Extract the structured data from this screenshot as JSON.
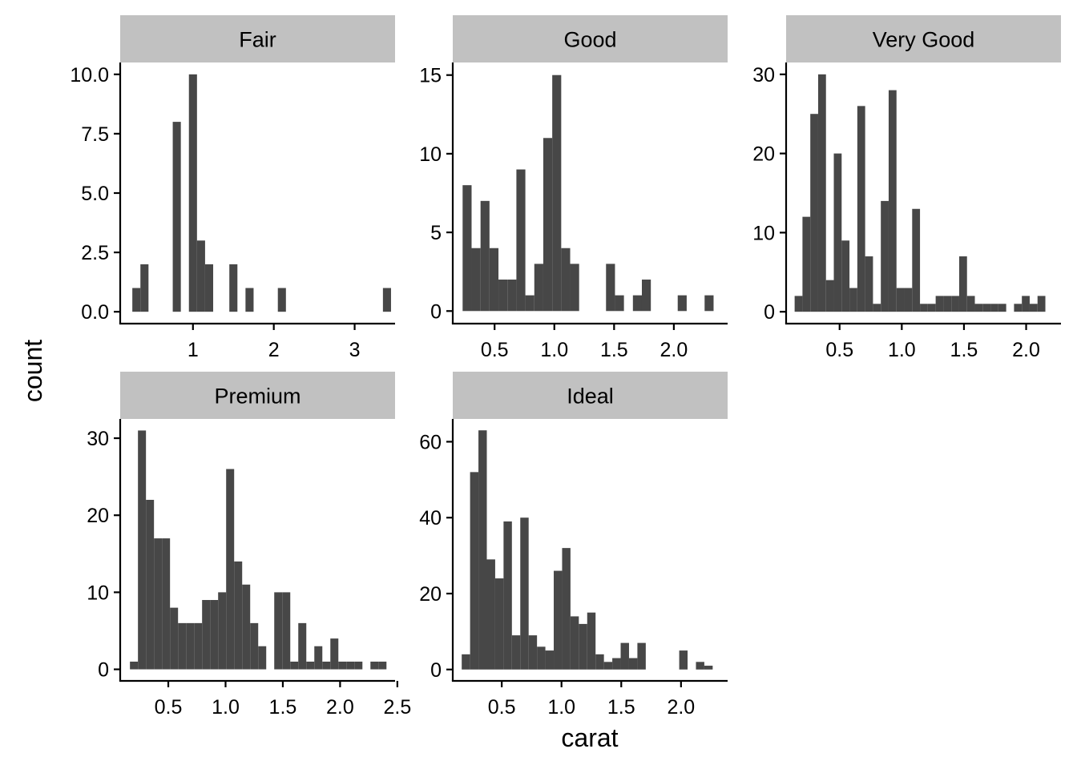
{
  "chart_data": {
    "type": "bar",
    "subtype": "faceted-histogram",
    "xlabel": "carat",
    "ylabel": "count",
    "bar_color": "#474747",
    "strip_color": "#c1c1c1",
    "grid": false,
    "legend": "none",
    "panels": [
      {
        "name": "Fair",
        "bin_width": 0.1,
        "xlim": [
          0.1,
          3.5
        ],
        "ylim": [
          -0.5,
          10.5
        ],
        "x_ticks": [
          1,
          2,
          3
        ],
        "x_tick_labels": [
          "1",
          "2",
          "3"
        ],
        "y_ticks": [
          0,
          2.5,
          5,
          7.5,
          10
        ],
        "y_tick_labels": [
          "0.0",
          "2.5",
          "5.0",
          "7.5",
          "10.0"
        ],
        "x": [
          0.3,
          0.4,
          0.8,
          1.0,
          1.1,
          1.2,
          1.5,
          1.7,
          2.1,
          3.4
        ],
        "counts": [
          1,
          2,
          8,
          10,
          3,
          2,
          2,
          1,
          1,
          1
        ]
      },
      {
        "name": "Good",
        "bin_width": 0.075,
        "xlim": [
          0.15,
          2.45
        ],
        "ylim": [
          -0.8,
          15.8
        ],
        "x_ticks": [
          0.5,
          1.0,
          1.5,
          2.0
        ],
        "x_tick_labels": [
          "0.5",
          "1.0",
          "1.5",
          "2.0"
        ],
        "y_ticks": [
          0,
          5,
          10,
          15
        ],
        "y_tick_labels": [
          "0",
          "5",
          "10",
          "15"
        ],
        "x": [
          0.27,
          0.345,
          0.42,
          0.495,
          0.57,
          0.645,
          0.72,
          0.795,
          0.87,
          0.945,
          1.02,
          1.095,
          1.17,
          1.47,
          1.545,
          1.695,
          1.77,
          2.07,
          2.295
        ],
        "counts": [
          8,
          4,
          7,
          4,
          2,
          2,
          9,
          1,
          3,
          11,
          15,
          4,
          3,
          3,
          1,
          1,
          2,
          1,
          1
        ]
      },
      {
        "name": "Very Good",
        "bin_width": 0.063,
        "xlim": [
          0.07,
          2.28
        ],
        "ylim": [
          -1.5,
          31.5
        ],
        "x_ticks": [
          0.5,
          1.0,
          1.5,
          2.0
        ],
        "x_tick_labels": [
          "0.5",
          "1.0",
          "1.5",
          "2.0"
        ],
        "y_ticks": [
          0,
          10,
          20,
          30
        ],
        "y_tick_labels": [
          "0",
          "10",
          "20",
          "30"
        ],
        "x": [
          0.17,
          0.233,
          0.296,
          0.359,
          0.422,
          0.485,
          0.548,
          0.611,
          0.674,
          0.737,
          0.8,
          0.863,
          0.926,
          0.989,
          1.052,
          1.115,
          1.178,
          1.241,
          1.304,
          1.367,
          1.43,
          1.493,
          1.556,
          1.619,
          1.682,
          1.745,
          1.808,
          1.934,
          1.997,
          2.06,
          2.123
        ],
        "counts": [
          2,
          12,
          25,
          30,
          4,
          20,
          9,
          3,
          26,
          7,
          1,
          14,
          28,
          3,
          3,
          13,
          1,
          1,
          2,
          2,
          2,
          7,
          2,
          1,
          1,
          1,
          1,
          1,
          2,
          1,
          2
        ]
      },
      {
        "name": "Premium",
        "bin_width": 0.07,
        "xlim": [
          0.08,
          2.48
        ],
        "ylim": [
          -1.5,
          32.5
        ],
        "x_ticks": [
          0.5,
          1.0,
          1.5,
          2.0,
          2.5
        ],
        "x_tick_labels": [
          "0.5",
          "1.0",
          "1.5",
          "2.0",
          "2.5"
        ],
        "y_ticks": [
          0,
          10,
          20,
          30
        ],
        "y_tick_labels": [
          "0",
          "10",
          "20",
          "30"
        ],
        "x": [
          0.2,
          0.27,
          0.34,
          0.41,
          0.48,
          0.55,
          0.62,
          0.69,
          0.76,
          0.83,
          0.9,
          0.97,
          1.04,
          1.11,
          1.18,
          1.25,
          1.32,
          1.46,
          1.53,
          1.6,
          1.67,
          1.74,
          1.81,
          1.88,
          1.95,
          2.02,
          2.09,
          2.16,
          2.3,
          2.37
        ],
        "counts": [
          1,
          31,
          22,
          17,
          17,
          8,
          6,
          6,
          6,
          9,
          9,
          10,
          26,
          14,
          11,
          6,
          3,
          10,
          10,
          1,
          6,
          1,
          3,
          1,
          4,
          1,
          1,
          1,
          1,
          1
        ]
      },
      {
        "name": "Ideal",
        "bin_width": 0.07,
        "xlim": [
          0.09,
          2.39
        ],
        "ylim": [
          -3,
          66
        ],
        "x_ticks": [
          0.5,
          1.0,
          1.5,
          2.0
        ],
        "x_tick_labels": [
          "0.5",
          "1.0",
          "1.5",
          "2.0"
        ],
        "y_ticks": [
          0,
          20,
          40,
          60
        ],
        "y_tick_labels": [
          "0",
          "20",
          "40",
          "60"
        ],
        "x": [
          0.2,
          0.27,
          0.34,
          0.41,
          0.48,
          0.55,
          0.62,
          0.69,
          0.76,
          0.83,
          0.9,
          0.97,
          1.04,
          1.11,
          1.18,
          1.25,
          1.32,
          1.39,
          1.46,
          1.53,
          1.6,
          1.67,
          2.02,
          2.16,
          2.23
        ],
        "counts": [
          4,
          52,
          63,
          29,
          24,
          39,
          9,
          40,
          9,
          6,
          5,
          26,
          32,
          14,
          12,
          15,
          4,
          2,
          3,
          7,
          3,
          7,
          5,
          2,
          1
        ]
      }
    ]
  }
}
